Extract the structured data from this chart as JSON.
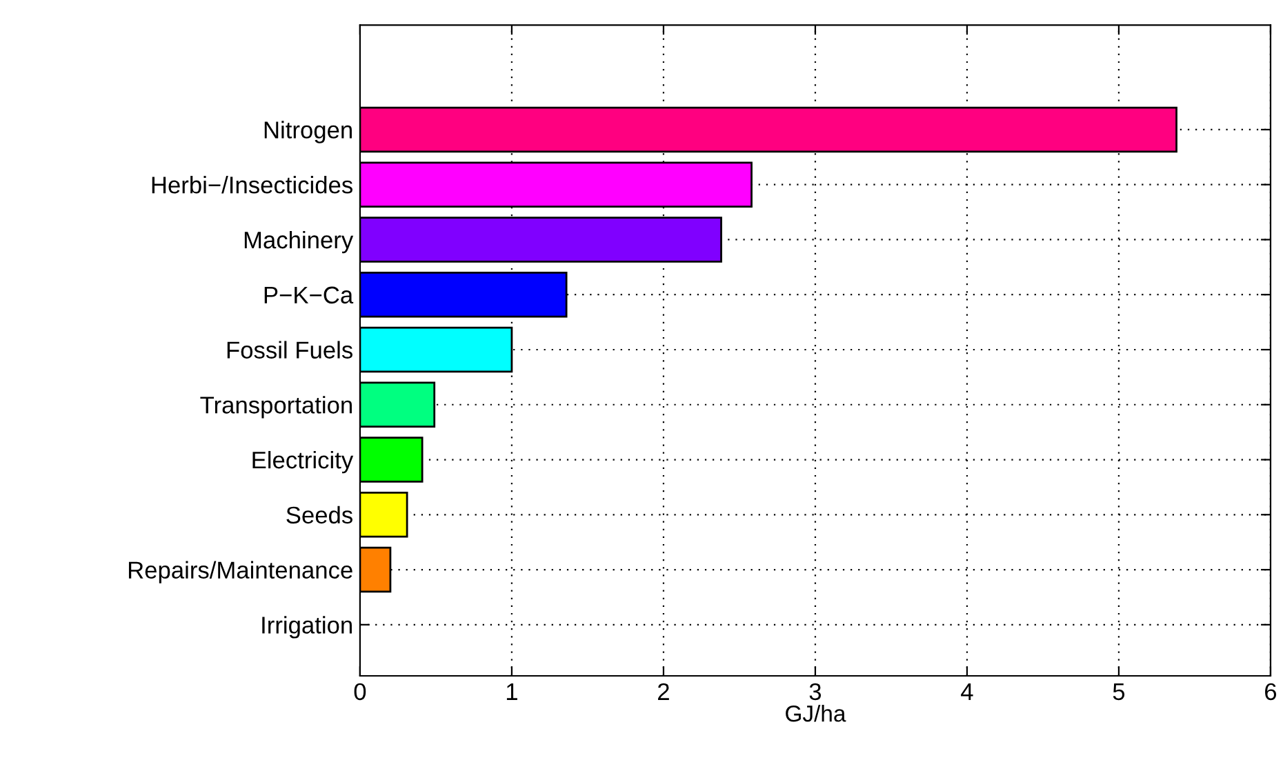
{
  "chart_data": {
    "type": "bar",
    "orientation": "horizontal",
    "xlabel": "GJ/ha",
    "categories": [
      "Nitrogen",
      "Herbi−/Insecticides",
      "Machinery",
      "P−K−Ca",
      "Fossil Fuels",
      "Transportation",
      "Electricity",
      "Seeds",
      "Repairs/Maintenance",
      "Irrigation"
    ],
    "values": [
      5.38,
      2.58,
      2.38,
      1.36,
      1.0,
      0.49,
      0.41,
      0.31,
      0.2,
      0
    ],
    "colors": [
      "#ff0080",
      "#ff00ff",
      "#8000ff",
      "#0000ff",
      "#00ffff",
      "#00ff80",
      "#00ff00",
      "#ffff00",
      "#ff8000",
      null
    ],
    "xlim": [
      0,
      6
    ],
    "xticks": [
      0,
      1,
      2,
      3,
      4,
      5,
      6
    ],
    "grid": true
  }
}
